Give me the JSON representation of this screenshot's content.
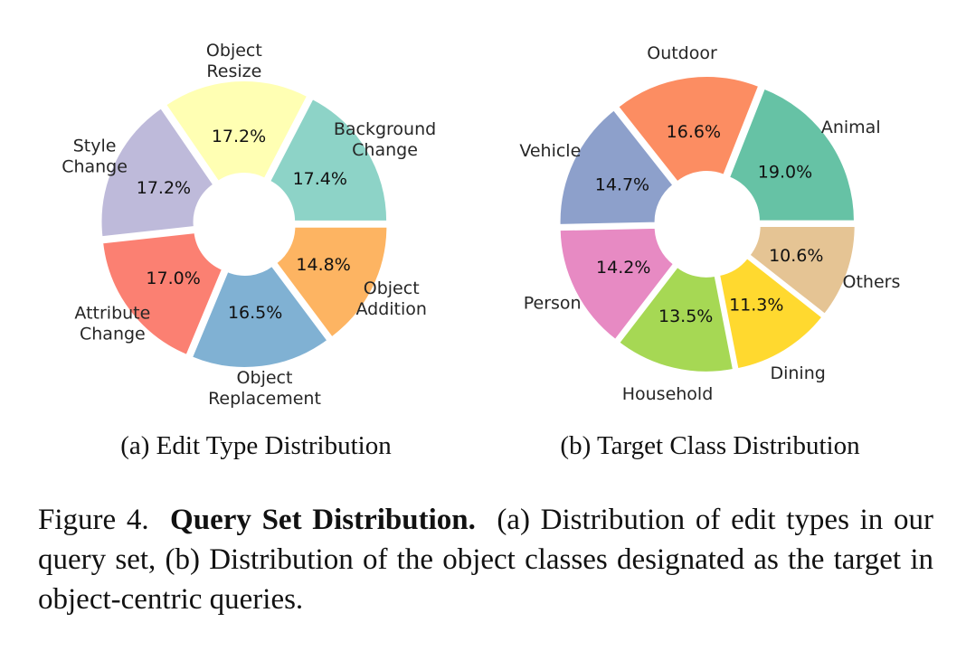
{
  "chart_data": [
    {
      "type": "pie",
      "subcaption": "(a) Edit Type Distribution",
      "categories": [
        "Background Change",
        "Object Resize",
        "Style Change",
        "Attribute Change",
        "Object Replacement",
        "Object Addition"
      ],
      "label_lines": [
        [
          "Background",
          "Change"
        ],
        [
          "Object",
          "Resize"
        ],
        [
          "Style",
          "Change"
        ],
        [
          "Attribute",
          "Change"
        ],
        [
          "Object",
          "Replacement"
        ],
        [
          "Object",
          "Addition"
        ]
      ],
      "values": [
        17.4,
        17.2,
        17.2,
        17.0,
        16.5,
        14.8
      ],
      "value_labels": [
        "17.4%",
        "17.2%",
        "17.2%",
        "17.0%",
        "16.5%",
        "14.8%"
      ],
      "colors": [
        "#8dd3c7",
        "#ffffb3",
        "#bebada",
        "#fb8072",
        "#80b1d3",
        "#fdb462"
      ]
    },
    {
      "type": "pie",
      "subcaption": "(b) Target Class Distribution",
      "categories": [
        "Animal",
        "Outdoor",
        "Vehicle",
        "Person",
        "Household",
        "Dining",
        "Others"
      ],
      "label_lines": [
        [
          "Animal"
        ],
        [
          "Outdoor"
        ],
        [
          "Vehicle"
        ],
        [
          "Person"
        ],
        [
          "Household"
        ],
        [
          "Dining"
        ],
        [
          "Others"
        ]
      ],
      "values": [
        19.0,
        16.6,
        14.7,
        14.2,
        13.5,
        11.3,
        10.6
      ],
      "value_labels": [
        "19.0%",
        "16.6%",
        "14.7%",
        "14.2%",
        "13.5%",
        "11.3%",
        "10.6%"
      ],
      "colors": [
        "#66c2a5",
        "#fc8d62",
        "#8da0cb",
        "#e78ac3",
        "#a6d854",
        "#ffd92f",
        "#e5c494"
      ]
    }
  ],
  "caption": {
    "label": "Figure 4.",
    "title": "Query Set Distribution.",
    "text": "(a) Distribution of edit types in our query set, (b) Distribution of the object classes designated as the target in object-centric queries."
  }
}
